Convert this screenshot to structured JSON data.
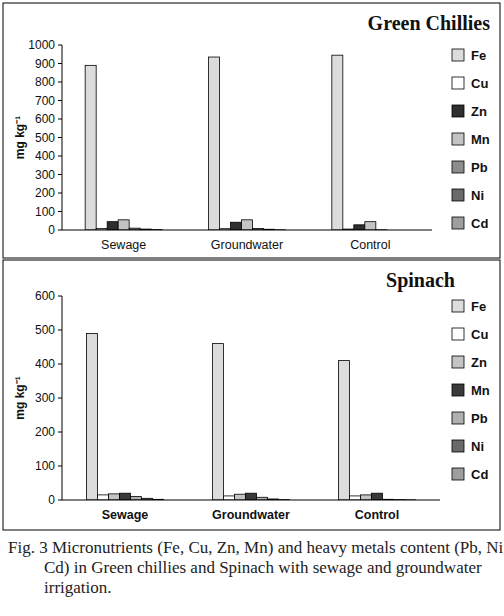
{
  "caption": "Fig. 3 Micronutrients (Fe, Cu, Zn, Mn) and heavy metals content (Pb, Ni, Cd) in Green chillies and Spinach with sewage and groundwater irrigation.",
  "chart_data": [
    {
      "type": "bar",
      "title": "Green Chillies",
      "y_label": "mg kg⁻¹",
      "categories": [
        "Sewage",
        "Groundwater",
        "Control"
      ],
      "series": [
        {
          "name": "Fe",
          "color": "#dcdcdc",
          "values": [
            890,
            935,
            945
          ]
        },
        {
          "name": "Cu",
          "color": "#ffffff",
          "values": [
            8,
            7,
            5
          ]
        },
        {
          "name": "Zn",
          "color": "#2e2e2e",
          "values": [
            45,
            42,
            28
          ]
        },
        {
          "name": "Mn",
          "color": "#c4c4c4",
          "values": [
            55,
            55,
            45
          ]
        },
        {
          "name": "Pb",
          "color": "#8c8c8c",
          "values": [
            10,
            8,
            1
          ]
        },
        {
          "name": "Ni",
          "color": "#6a6a6a",
          "values": [
            5,
            4,
            0
          ]
        },
        {
          "name": "Cd",
          "color": "#9e9e9e",
          "values": [
            2,
            1,
            0
          ]
        }
      ],
      "ylim": [
        0,
        1000
      ],
      "yticks": [
        0,
        100,
        200,
        300,
        400,
        500,
        600,
        700,
        800,
        900,
        1000
      ],
      "grid": false,
      "legend": "right"
    },
    {
      "type": "bar",
      "title": "Spinach",
      "y_label": "mg kg⁻¹",
      "categories": [
        "Sewage",
        "Groundwater",
        "Control"
      ],
      "series": [
        {
          "name": "Fe",
          "color": "#dcdcdc",
          "values": [
            490,
            460,
            410
          ]
        },
        {
          "name": "Cu",
          "color": "#ffffff",
          "values": [
            15,
            12,
            12
          ]
        },
        {
          "name": "Zn",
          "color": "#c4c4c4",
          "values": [
            18,
            17,
            15
          ]
        },
        {
          "name": "Mn",
          "color": "#3a3a3a",
          "values": [
            20,
            20,
            20
          ]
        },
        {
          "name": "Pb",
          "color": "#b0b0b0",
          "values": [
            10,
            8,
            2
          ]
        },
        {
          "name": "Ni",
          "color": "#6a6a6a",
          "values": [
            5,
            3,
            1
          ]
        },
        {
          "name": "Cd",
          "color": "#9e9e9e",
          "values": [
            2,
            1,
            0.5
          ]
        }
      ],
      "ylim": [
        0,
        600
      ],
      "yticks": [
        0,
        100,
        200,
        300,
        400,
        500,
        600
      ],
      "grid": false,
      "legend": "right"
    }
  ]
}
